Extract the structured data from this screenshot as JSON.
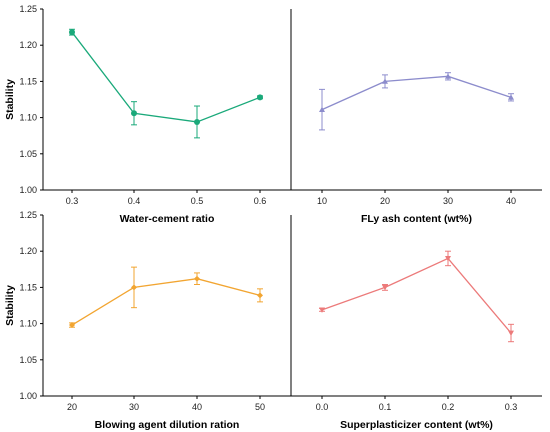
{
  "chart_data": [
    {
      "type": "line",
      "xlabel": "Water-cement ratio",
      "ylabel": "Stability",
      "xticks": [
        "0.3",
        "0.4",
        "0.5",
        "0.6"
      ],
      "yticks": [
        "1.00",
        "1.05",
        "1.10",
        "1.15",
        "1.20",
        "1.25"
      ],
      "ylim": [
        1.0,
        1.25
      ],
      "color": "#1aa97a",
      "marker": "circle",
      "series": [
        {
          "x": [
            "0.3",
            "0.4",
            "0.5",
            "0.6"
          ],
          "values": [
            1.218,
            1.106,
            1.094,
            1.128
          ],
          "errors": [
            0.004,
            0.016,
            0.022,
            0.002
          ]
        }
      ]
    },
    {
      "type": "line",
      "xlabel": "FLy ash content (wt%)",
      "ylabel": "",
      "xticks": [
        "10",
        "20",
        "30",
        "40"
      ],
      "ylim": [
        1.0,
        1.25
      ],
      "color": "#8c8ccc",
      "marker": "triangle-up",
      "series": [
        {
          "x": [
            "10",
            "20",
            "30",
            "40"
          ],
          "values": [
            1.111,
            1.15,
            1.157,
            1.128
          ],
          "errors": [
            0.028,
            0.009,
            0.005,
            0.005
          ]
        }
      ]
    },
    {
      "type": "line",
      "xlabel": "Blowing agent dilution ration",
      "ylabel": "Stability",
      "xticks": [
        "20",
        "30",
        "40",
        "50"
      ],
      "yticks": [
        "1.00",
        "1.05",
        "1.10",
        "1.15",
        "1.20",
        "1.25"
      ],
      "ylim": [
        1.0,
        1.25
      ],
      "color": "#f2a531",
      "marker": "diamond",
      "series": [
        {
          "x": [
            "20",
            "30",
            "40",
            "50"
          ],
          "values": [
            1.098,
            1.15,
            1.162,
            1.139
          ],
          "errors": [
            0.003,
            0.028,
            0.008,
            0.009
          ]
        }
      ]
    },
    {
      "type": "line",
      "xlabel": "Superplasticizer content (wt%)",
      "ylabel": "",
      "xticks": [
        "0.0",
        "0.1",
        "0.2",
        "0.3"
      ],
      "ylim": [
        1.0,
        1.25
      ],
      "color": "#ec7a7a",
      "marker": "triangle-down",
      "series": [
        {
          "x": [
            "0.0",
            "0.1",
            "0.2",
            "0.3"
          ],
          "values": [
            1.119,
            1.15,
            1.19,
            1.087
          ],
          "errors": [
            0.002,
            0.004,
            0.01,
            0.012
          ]
        }
      ]
    }
  ]
}
